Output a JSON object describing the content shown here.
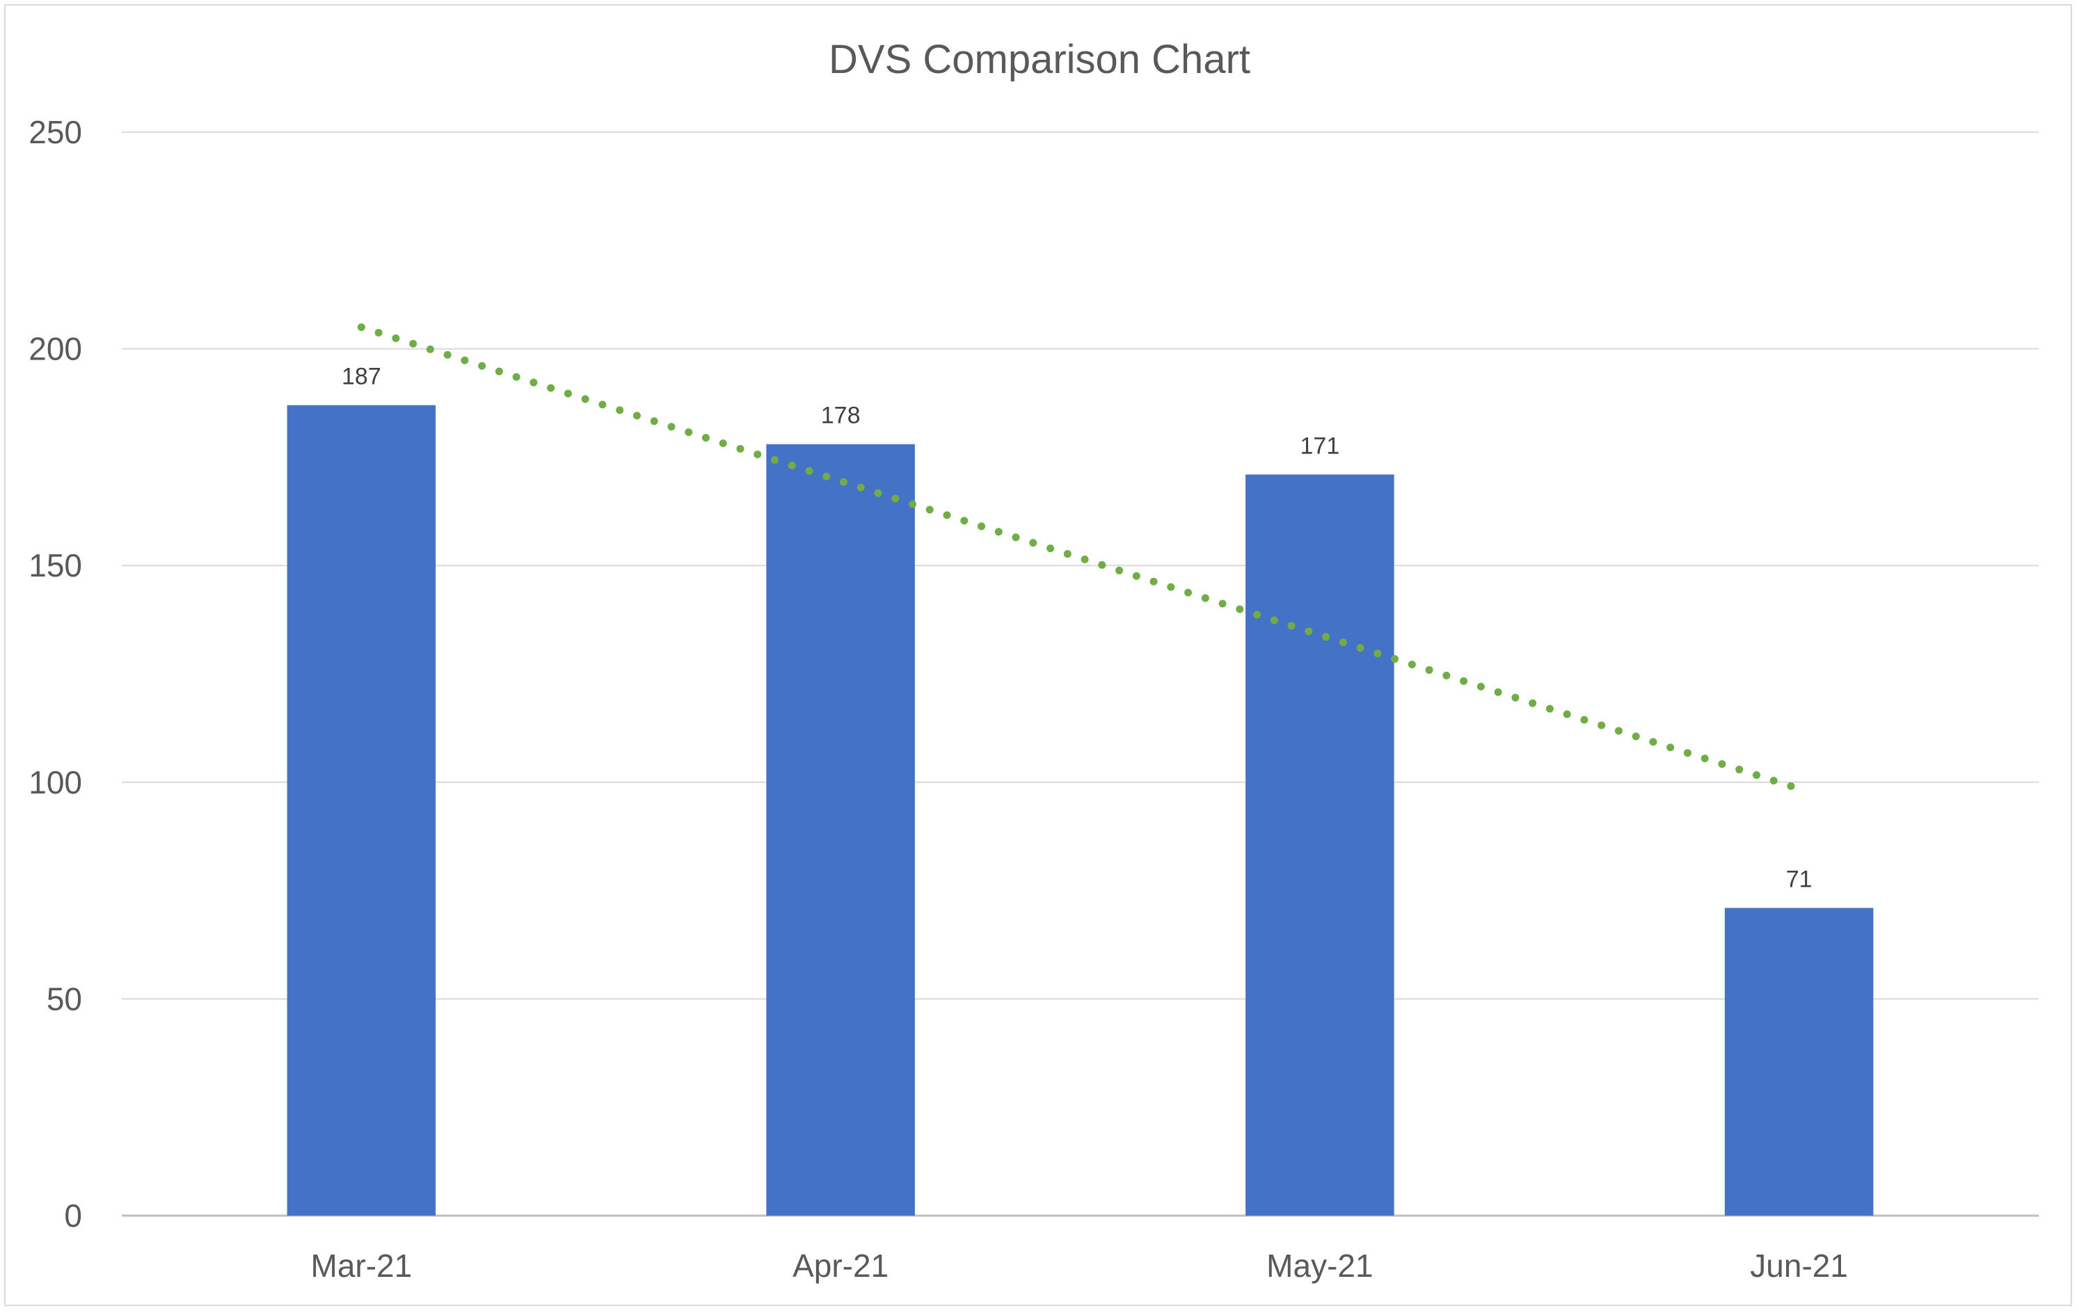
{
  "chart_data": {
    "type": "bar",
    "title": "DVS Comparison Chart",
    "xlabel": "",
    "ylabel": "",
    "categories": [
      "Mar-21",
      "Apr-21",
      "May-21",
      "Jun-21"
    ],
    "values": [
      187,
      178,
      171,
      71
    ],
    "data_labels": [
      "187",
      "178",
      "171",
      "71"
    ],
    "ylim": [
      0,
      250
    ],
    "y_ticks": [
      0,
      50,
      100,
      150,
      200,
      250
    ],
    "grid": true,
    "legend": "none",
    "bar_color": "#4472C4",
    "trendline": {
      "type": "linear",
      "style": "dotted",
      "color": "#70AD47"
    }
  }
}
